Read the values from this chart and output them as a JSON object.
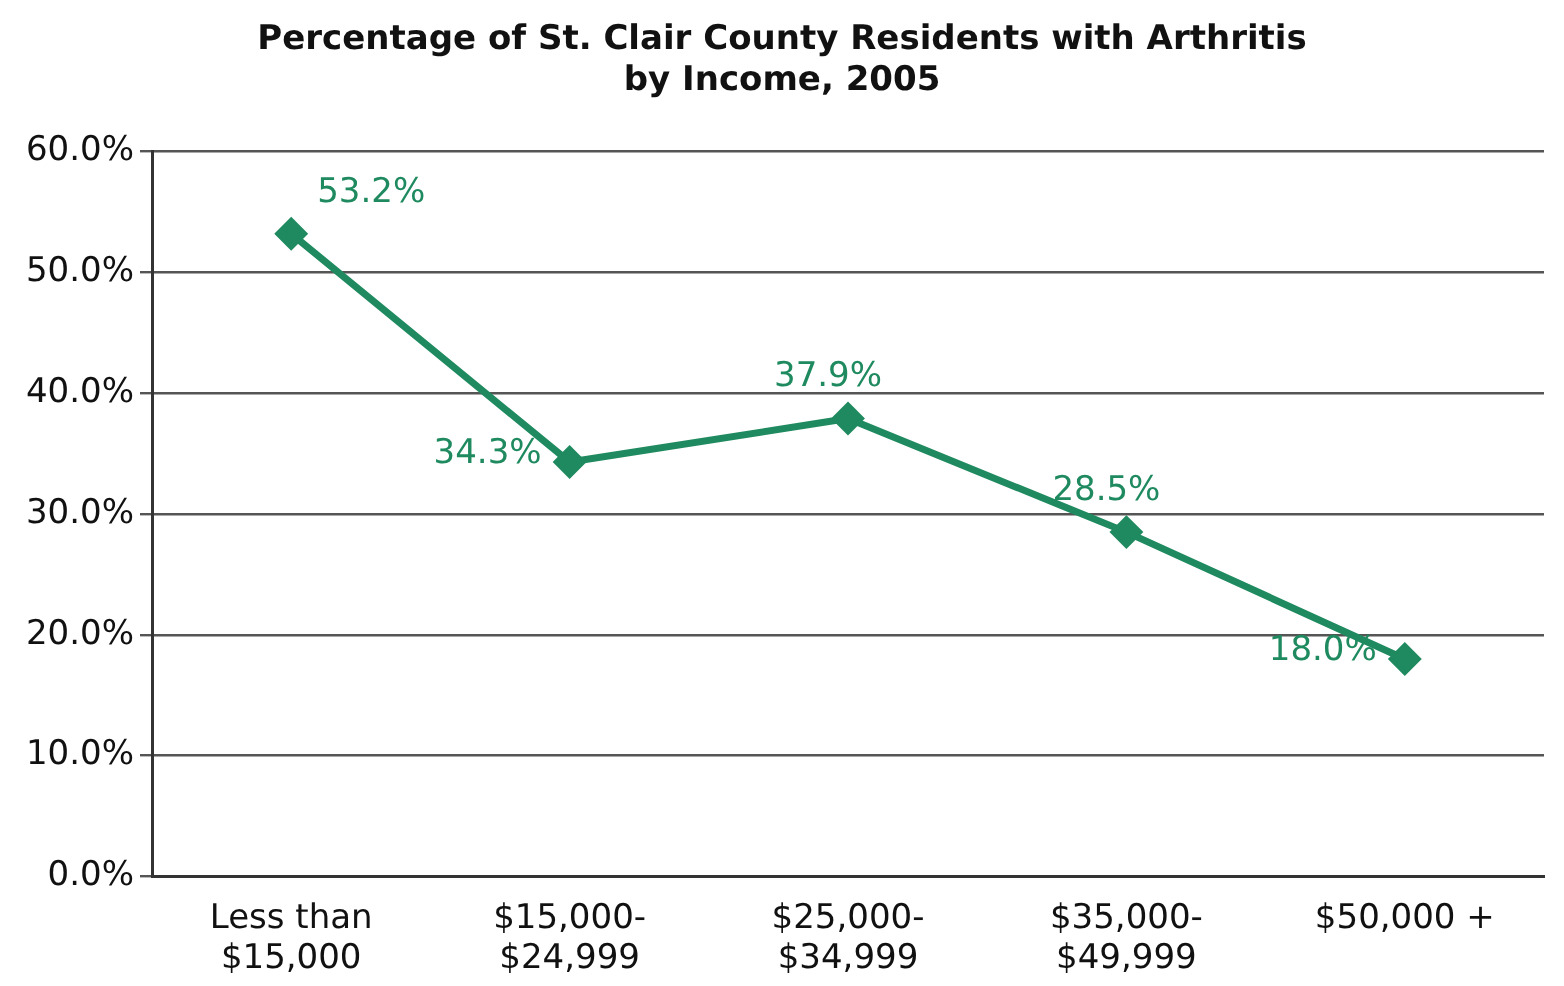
{
  "chart_data": {
    "type": "line",
    "title": "Percentage of St. Clair County Residents with Arthritis\nby Income, 2005",
    "categories": [
      "Less than\n$15,000",
      "$15,000-\n$24,999",
      "$25,000-\n$34,999",
      "$35,000-\n$49,999",
      "$50,000 +"
    ],
    "series": [
      {
        "color": "#1f8a5f",
        "values": [
          53.2,
          34.3,
          37.9,
          28.5,
          18.0
        ],
        "value_labels": [
          "53.2%",
          "34.3%",
          "37.9%",
          "28.5%",
          "18.0%"
        ]
      }
    ],
    "ylim": [
      0,
      60
    ],
    "yticks": [
      {
        "value": 0,
        "label": "0.0%"
      },
      {
        "value": 10,
        "label": "10.0%"
      },
      {
        "value": 20,
        "label": "20.0%"
      },
      {
        "value": 30,
        "label": "30.0%"
      },
      {
        "value": 40,
        "label": "40.0%"
      },
      {
        "value": 50,
        "label": "50.0%"
      },
      {
        "value": 60,
        "label": "60.0%"
      }
    ],
    "grid": "y",
    "legend": false,
    "marker": "diamond",
    "line_style": "solid"
  }
}
